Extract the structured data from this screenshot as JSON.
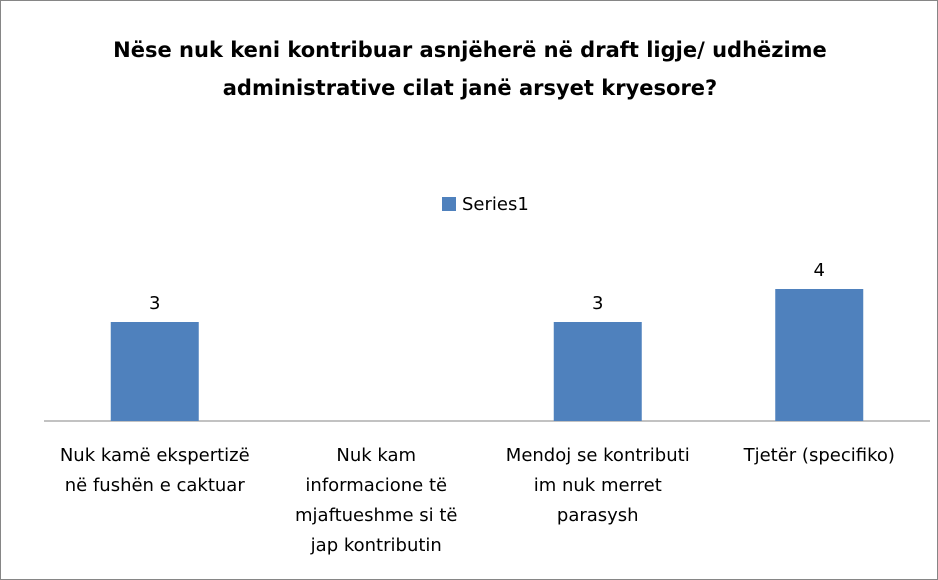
{
  "chart_data": {
    "type": "bar",
    "title": "Nëse nuk keni kontribuar asnjëherë në draft ligje/ udhëzime administrative cilat janë arsyet kryesore?",
    "categories": [
      "Nuk kamë ekspertizë në fushën e caktuar",
      "Nuk kam informacione të mjaftueshme si të jap kontributin",
      "Mendoj se kontributi im nuk merret parasysh",
      "Tjetër (specifiko)"
    ],
    "series": [
      {
        "name": "Series1",
        "color": "#4f81bd",
        "values": [
          3,
          null,
          3,
          4
        ]
      }
    ]
  }
}
